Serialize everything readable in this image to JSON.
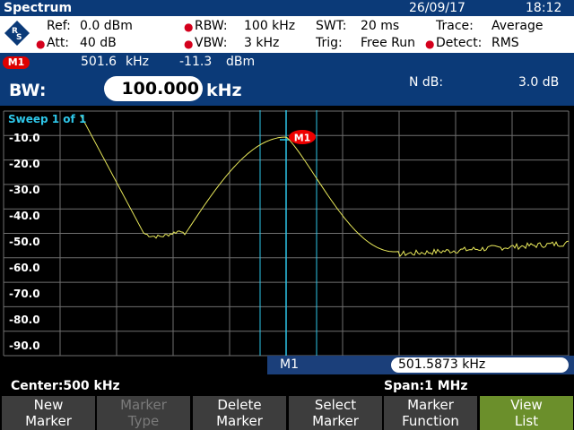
{
  "title": "Spectrum",
  "date": "26/09/17",
  "time": "18:12",
  "params": {
    "ref_label": "Ref:",
    "ref_value": "0.0 dBm",
    "att_label": "Att:",
    "att_value": "40 dB",
    "rbw_label": "RBW:",
    "rbw_value": "100 kHz",
    "vbw_label": "VBW:",
    "vbw_value": "3 kHz",
    "swt_label": "SWT:",
    "swt_value": "20 ms",
    "trig_label": "Trig:",
    "trig_value": "Free Run",
    "trace_label": "Trace:",
    "trace_value": "Average",
    "detect_label": "Detect:",
    "detect_value": "RMS"
  },
  "marker_info": {
    "badge": "M1",
    "freq": "501.6",
    "freq_unit": "kHz",
    "level": "-11.3",
    "level_unit": "dBm"
  },
  "bw": {
    "label": "BW:",
    "value": "100.000",
    "unit": "kHz",
    "ndb_label": "N dB:",
    "ndb_value": "3.0 dB"
  },
  "plot": {
    "sweep_label": "Sweep 1 of 1",
    "marker_label": "M1",
    "y_ticks": [
      "-10.0",
      "-20.0",
      "-30.0",
      "-40.0",
      "-50.0",
      "-60.0",
      "-70.0",
      "-80.0",
      "-90.0"
    ]
  },
  "marker_strip": {
    "name": "M1",
    "value": "501.5873 kHz"
  },
  "footer": {
    "center": "Center:500 kHz",
    "span": "Span:1 MHz"
  },
  "softkeys": [
    {
      "line1": "New",
      "line2": "Marker",
      "enabled": true
    },
    {
      "line1": "Marker",
      "line2": "Type",
      "enabled": false
    },
    {
      "line1": "Delete",
      "line2": "Marker",
      "enabled": true
    },
    {
      "line1": "Select",
      "line2": "Marker",
      "enabled": true
    },
    {
      "line1": "Marker",
      "line2": "Function",
      "enabled": true
    },
    {
      "line1": "View",
      "line2": "List",
      "enabled": true,
      "highlight": true
    }
  ],
  "colors": {
    "header_blue": "#0b3a78",
    "trace": "#e8e85a",
    "marker_line": "#2ec6e8",
    "softkey": "#3d3d3d",
    "softkey_active": "#6b8f2b"
  }
}
